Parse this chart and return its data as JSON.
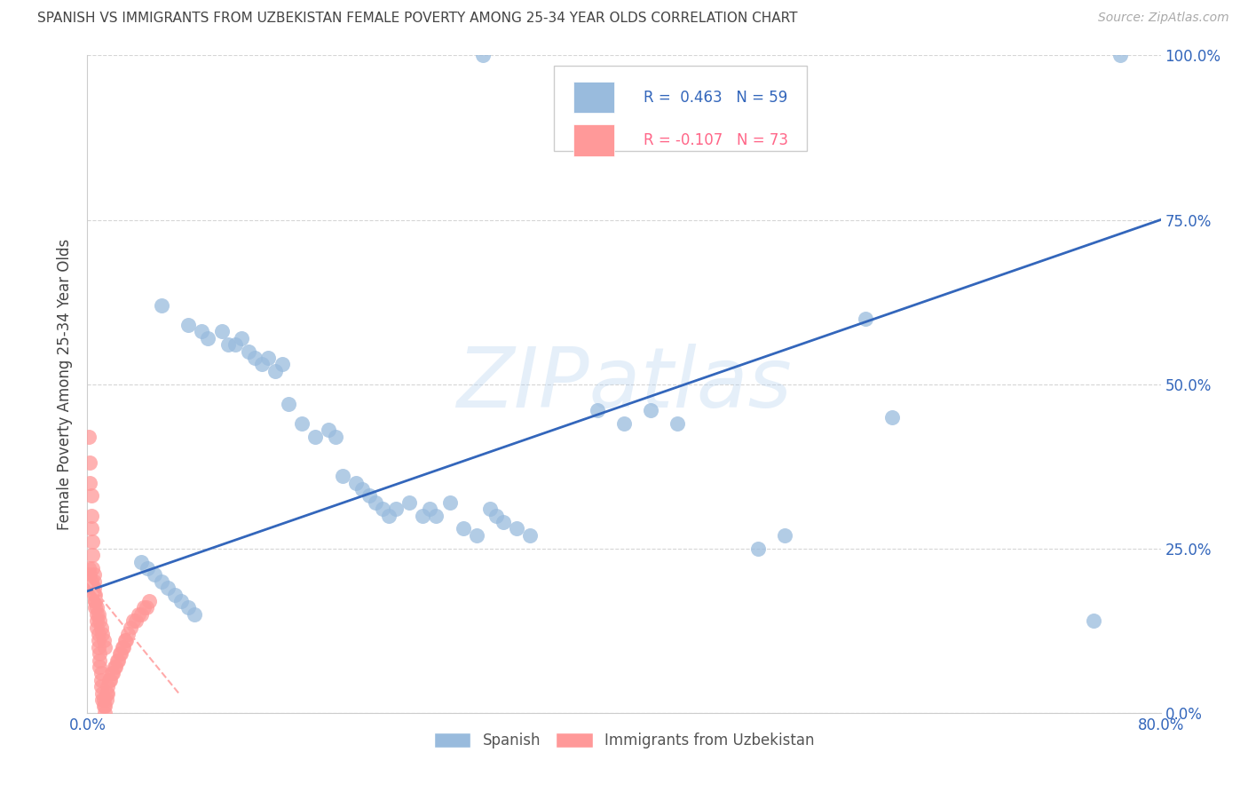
{
  "title": "SPANISH VS IMMIGRANTS FROM UZBEKISTAN FEMALE POVERTY AMONG 25-34 YEAR OLDS CORRELATION CHART",
  "source": "Source: ZipAtlas.com",
  "ylabel": "Female Poverty Among 25-34 Year Olds",
  "watermark": "ZIPatlas",
  "xlim": [
    0.0,
    0.8
  ],
  "ylim": [
    0.0,
    1.0
  ],
  "blue_R": 0.463,
  "blue_N": 59,
  "pink_R": -0.107,
  "pink_N": 73,
  "blue_color": "#99BBDD",
  "pink_color": "#FF9999",
  "blue_line_color": "#3366BB",
  "pink_line_color": "#FFAAAA",
  "legend_blue_label": "Spanish",
  "legend_pink_label": "Immigrants from Uzbekistan",
  "blue_scatter_x": [
    0.295,
    0.77,
    0.055,
    0.075,
    0.085,
    0.09,
    0.1,
    0.105,
    0.11,
    0.115,
    0.12,
    0.125,
    0.13,
    0.135,
    0.14,
    0.145,
    0.15,
    0.16,
    0.17,
    0.18,
    0.185,
    0.19,
    0.2,
    0.205,
    0.21,
    0.215,
    0.22,
    0.225,
    0.23,
    0.24,
    0.25,
    0.255,
    0.26,
    0.27,
    0.28,
    0.29,
    0.3,
    0.305,
    0.31,
    0.32,
    0.33,
    0.38,
    0.4,
    0.42,
    0.44,
    0.5,
    0.52,
    0.58,
    0.6,
    0.75,
    0.04,
    0.045,
    0.05,
    0.055,
    0.06,
    0.065,
    0.07,
    0.075,
    0.08
  ],
  "blue_scatter_y": [
    1.0,
    1.0,
    0.62,
    0.59,
    0.58,
    0.57,
    0.58,
    0.56,
    0.56,
    0.57,
    0.55,
    0.54,
    0.53,
    0.54,
    0.52,
    0.53,
    0.47,
    0.44,
    0.42,
    0.43,
    0.42,
    0.36,
    0.35,
    0.34,
    0.33,
    0.32,
    0.31,
    0.3,
    0.31,
    0.32,
    0.3,
    0.31,
    0.3,
    0.32,
    0.28,
    0.27,
    0.31,
    0.3,
    0.29,
    0.28,
    0.27,
    0.46,
    0.44,
    0.46,
    0.44,
    0.25,
    0.27,
    0.6,
    0.45,
    0.14,
    0.23,
    0.22,
    0.21,
    0.2,
    0.19,
    0.18,
    0.17,
    0.16,
    0.15
  ],
  "pink_scatter_x": [
    0.001,
    0.002,
    0.002,
    0.003,
    0.003,
    0.003,
    0.004,
    0.004,
    0.004,
    0.005,
    0.005,
    0.005,
    0.006,
    0.006,
    0.006,
    0.007,
    0.007,
    0.007,
    0.008,
    0.008,
    0.008,
    0.009,
    0.009,
    0.009,
    0.01,
    0.01,
    0.01,
    0.011,
    0.011,
    0.012,
    0.012,
    0.013,
    0.013,
    0.014,
    0.014,
    0.015,
    0.015,
    0.016,
    0.017,
    0.018,
    0.019,
    0.02,
    0.021,
    0.022,
    0.023,
    0.024,
    0.025,
    0.026,
    0.027,
    0.028,
    0.029,
    0.03,
    0.032,
    0.034,
    0.036,
    0.038,
    0.04,
    0.042,
    0.044,
    0.046,
    0.001,
    0.002,
    0.003,
    0.004,
    0.005,
    0.006,
    0.007,
    0.008,
    0.009,
    0.01,
    0.011,
    0.012,
    0.013
  ],
  "pink_scatter_y": [
    0.42,
    0.38,
    0.35,
    0.33,
    0.3,
    0.28,
    0.26,
    0.24,
    0.22,
    0.21,
    0.2,
    0.19,
    0.18,
    0.17,
    0.16,
    0.15,
    0.14,
    0.13,
    0.12,
    0.11,
    0.1,
    0.09,
    0.08,
    0.07,
    0.06,
    0.05,
    0.04,
    0.03,
    0.02,
    0.02,
    0.01,
    0.0,
    0.01,
    0.02,
    0.03,
    0.03,
    0.04,
    0.05,
    0.05,
    0.06,
    0.06,
    0.07,
    0.07,
    0.08,
    0.08,
    0.09,
    0.09,
    0.1,
    0.1,
    0.11,
    0.11,
    0.12,
    0.13,
    0.14,
    0.14,
    0.15,
    0.15,
    0.16,
    0.16,
    0.17,
    0.22,
    0.21,
    0.2,
    0.19,
    0.18,
    0.17,
    0.16,
    0.15,
    0.14,
    0.13,
    0.12,
    0.11,
    0.1
  ],
  "blue_line_x": [
    0.0,
    0.8
  ],
  "blue_line_y": [
    0.185,
    0.75
  ],
  "pink_line_x": [
    0.0,
    0.068
  ],
  "pink_line_y": [
    0.2,
    0.03
  ]
}
